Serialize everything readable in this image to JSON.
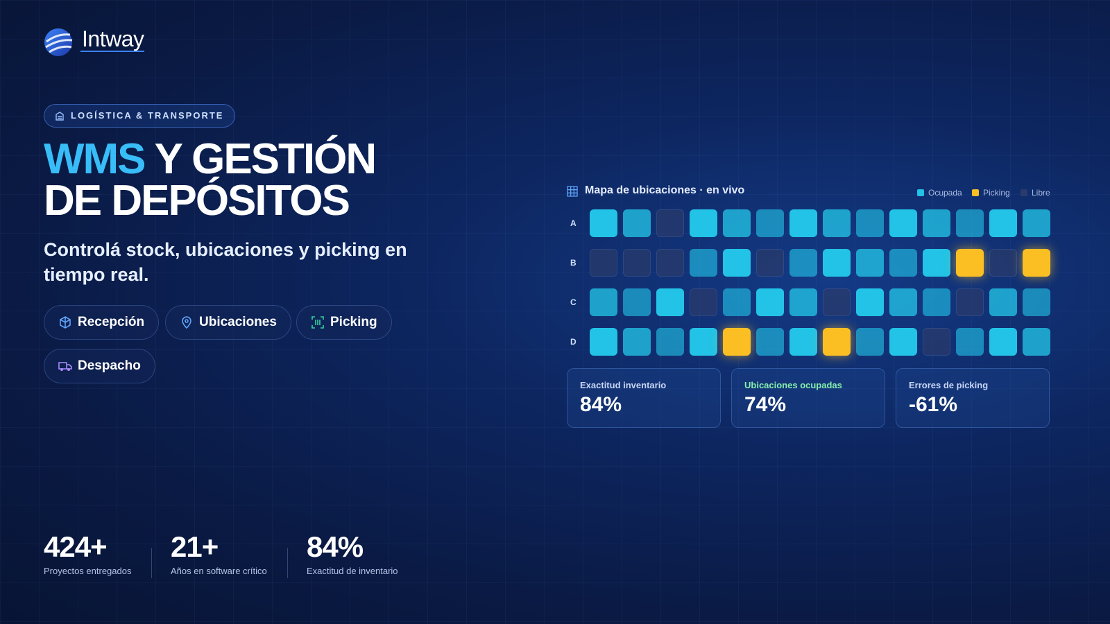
{
  "brand": "Intway",
  "badge": "LOGÍSTICA & TRANSPORTE",
  "title": {
    "highlight": "WMS",
    "line1": "Y GESTIÓN",
    "line2": "DE DEPÓSITOS"
  },
  "subtitle": "Controlá stock, ubicaciones y picking en tiempo real.",
  "chips": [
    "Recepción",
    "Ubicaciones",
    "Picking",
    "Despacho"
  ],
  "stats": [
    {
      "value": "424+",
      "label": "Proyectos entregados"
    },
    {
      "value": "21+",
      "label": "Años en software crítico"
    },
    {
      "value": "84%",
      "label": "Exactitud de inventario"
    }
  ],
  "map": {
    "title": "Mapa de ubicaciones · en vivo",
    "legend": [
      {
        "name": "Ocupada",
        "color": "#22c3e6"
      },
      {
        "name": "Picking",
        "color": "#fbbf24"
      },
      {
        "name": "Libre",
        "color": "#2a3b6b"
      }
    ],
    "rows": [
      {
        "label": "A",
        "cells": [
          0,
          0,
          2,
          0,
          0,
          0,
          0,
          0,
          0,
          0,
          0,
          0,
          0,
          0
        ]
      },
      {
        "label": "B",
        "cells": [
          2,
          2,
          2,
          0,
          0,
          2,
          0,
          0,
          0,
          0,
          0,
          1,
          2,
          1
        ]
      },
      {
        "label": "C",
        "cells": [
          0,
          0,
          0,
          2,
          0,
          0,
          0,
          2,
          0,
          0,
          0,
          2,
          0,
          0
        ]
      },
      {
        "label": "D",
        "cells": [
          0,
          0,
          0,
          0,
          1,
          0,
          0,
          1,
          0,
          0,
          2,
          0,
          0,
          0
        ]
      }
    ]
  },
  "kpis": [
    {
      "label": "Exactitud inventario",
      "value": "84%"
    },
    {
      "label": "Ubicaciones ocupadas",
      "value": "74%"
    },
    {
      "label": "Errores de picking",
      "value": "-61%"
    }
  ]
}
